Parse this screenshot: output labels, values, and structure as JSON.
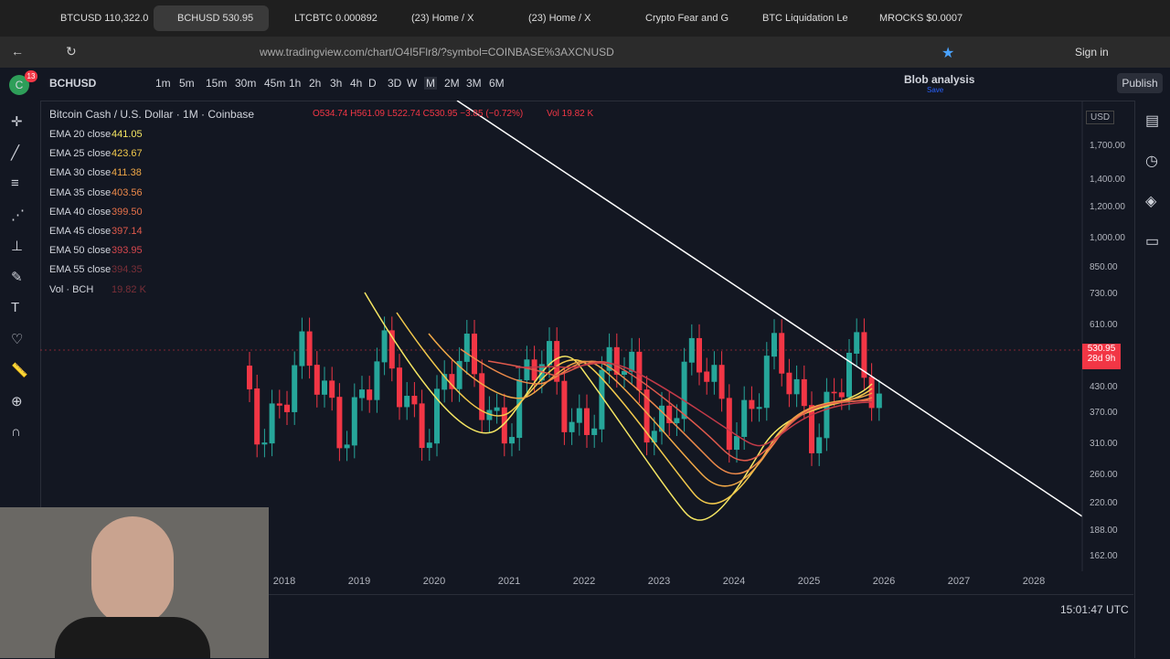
{
  "tabs": [
    "BTCUSD 110,322.0",
    "BCHUSD 530.95",
    "LTCBTC 0.000892",
    "(23) Home / X",
    "(23) Home / X",
    "Crypto Fear and G",
    "BTC Liquidation Le",
    "MROCKS $0.0007"
  ],
  "address": {
    "url": "www.tradingview.com/chart/O4I5Flr8/?symbol=COINBASE%3AXCNUSD",
    "sign_in": "Sign in"
  },
  "toolbar": {
    "badge": "13",
    "symbol": "BCHUSD",
    "intervals": [
      "1m",
      "5m",
      "15m",
      "30m",
      "45m",
      "1h",
      "2h",
      "3h",
      "4h",
      "D",
      "3D",
      "W",
      "M",
      "2M",
      "3M",
      "6M"
    ],
    "layout_name": "Blob analysis",
    "save": "Save",
    "publish": "Publish"
  },
  "legend": {
    "title": "Bitcoin Cash / U.S. Dollar · 1M · Coinbase",
    "ohlc": "O534.74 H561.09 L522.74 C530.95 −3.85 (−0.72%)",
    "volume": "Vol 19.82 K",
    "indicators": [
      {
        "label": "EMA 20 close",
        "value": "441.05"
      },
      {
        "label": "EMA 25 close",
        "value": "423.67"
      },
      {
        "label": "EMA 30 close",
        "value": "411.38"
      },
      {
        "label": "EMA 35 close",
        "value": "403.56"
      },
      {
        "label": "EMA 40 close",
        "value": "399.50"
      },
      {
        "label": "EMA 45 close",
        "value": "397.14"
      },
      {
        "label": "EMA 50 close",
        "value": "393.95"
      },
      {
        "label": "EMA 55 close",
        "value": "394.35"
      },
      {
        "label": "Vol · BCH",
        "value": "19.82 K"
      }
    ]
  },
  "price_axis": {
    "currency": "USD",
    "labels": [
      "1,700.00",
      "1,400.00",
      "1,200.00",
      "1,000.00",
      "850.00",
      "730.00",
      "610.00",
      "430.00",
      "370.00",
      "310.00",
      "260.00",
      "220.00",
      "188.00",
      "162.00"
    ],
    "last_price": "530.95",
    "countdown": "28d 9h"
  },
  "time_axis": {
    "labels": [
      "2018",
      "2019",
      "2020",
      "2021",
      "2022",
      "2023",
      "2024",
      "2025",
      "2026",
      "2027",
      "2028"
    ],
    "clock": "15:01:47 UTC"
  }
}
